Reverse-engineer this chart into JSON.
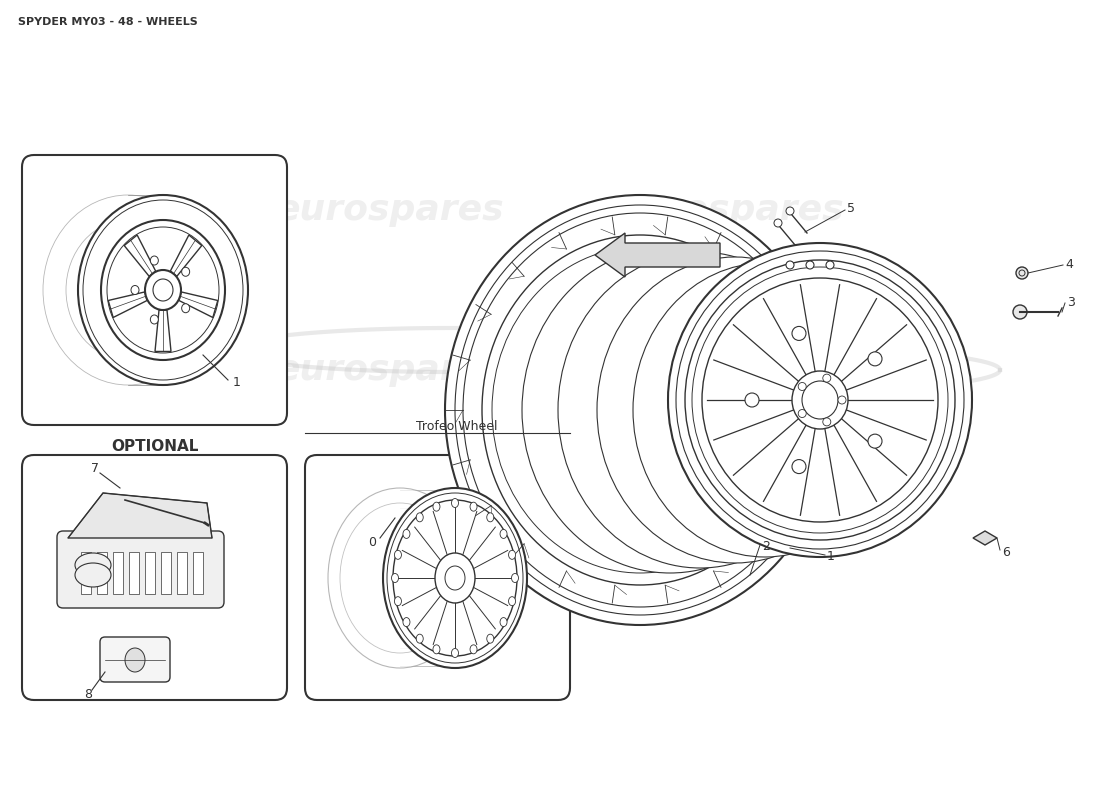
{
  "title": "SPYDER MY03 - 48 - WHEELS",
  "background_color": "#ffffff",
  "line_color": "#333333",
  "watermark_text": "eurospares",
  "optional_label": "OPTIONAL",
  "trofeo_label": "Trofeo Wheel",
  "fig_width": 11.0,
  "fig_height": 8.0,
  "part_labels": [
    "0",
    "1",
    "2",
    "3",
    "4",
    "5",
    "6",
    "7",
    "8"
  ]
}
